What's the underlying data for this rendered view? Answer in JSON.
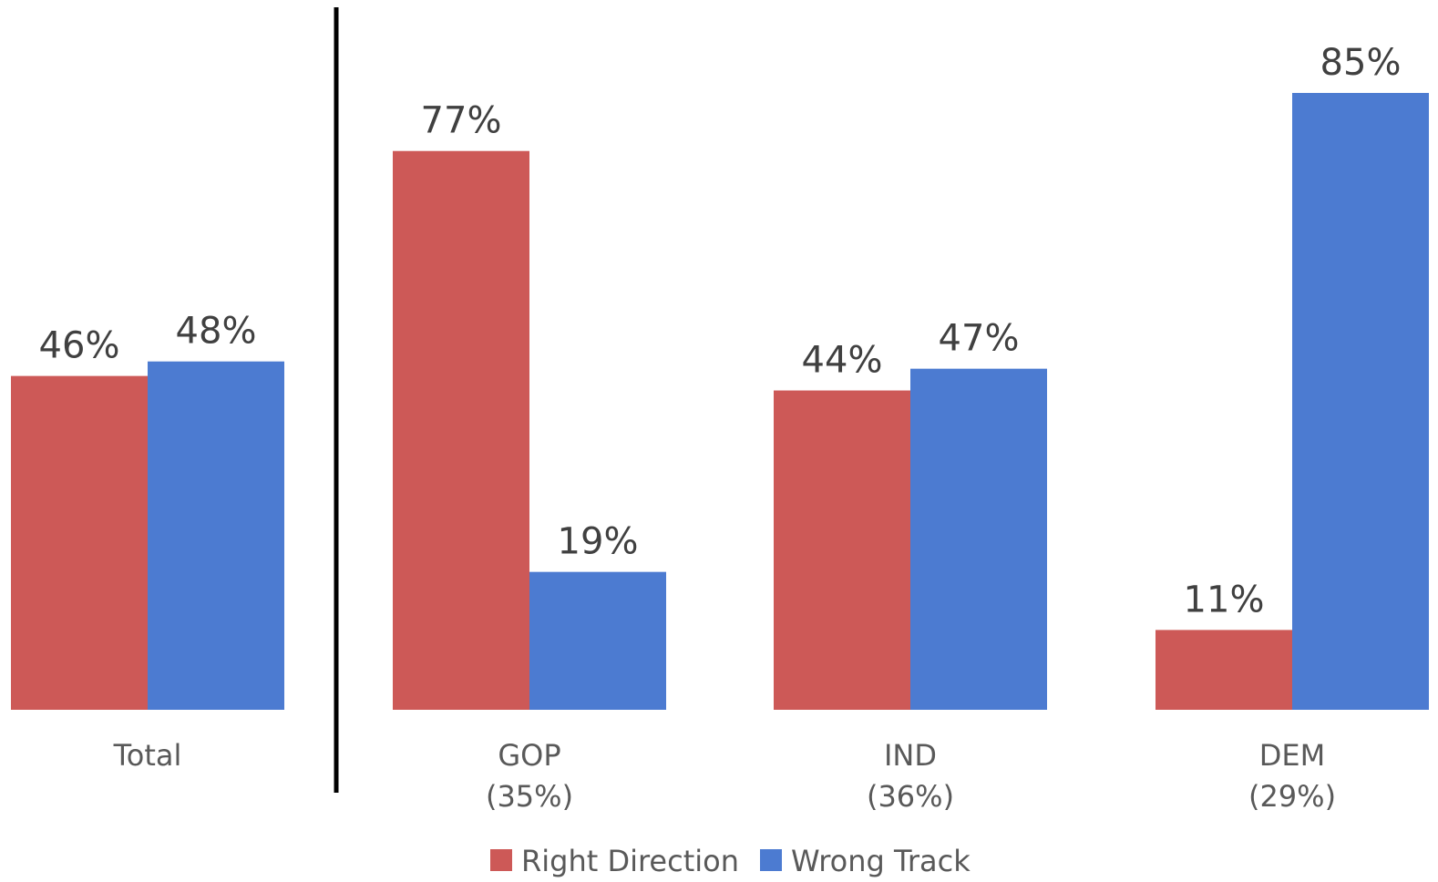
{
  "chart_data": {
    "type": "bar",
    "categories": [
      "Total",
      "GOP",
      "IND",
      "DEM"
    ],
    "category_sublabels": [
      "",
      "(35%)",
      "(36%)",
      "(29%)"
    ],
    "series": [
      {
        "name": "Right Direction",
        "color": "#CD5957",
        "values": [
          46,
          77,
          44,
          11
        ]
      },
      {
        "name": "Wrong Track",
        "color": "#4C7BD1",
        "values": [
          48,
          19,
          47,
          85
        ]
      }
    ],
    "value_suffix": "%",
    "ylim": [
      0,
      85
    ],
    "grid": false,
    "legend_position": "bottom-center",
    "separator_after_category": "Total"
  }
}
